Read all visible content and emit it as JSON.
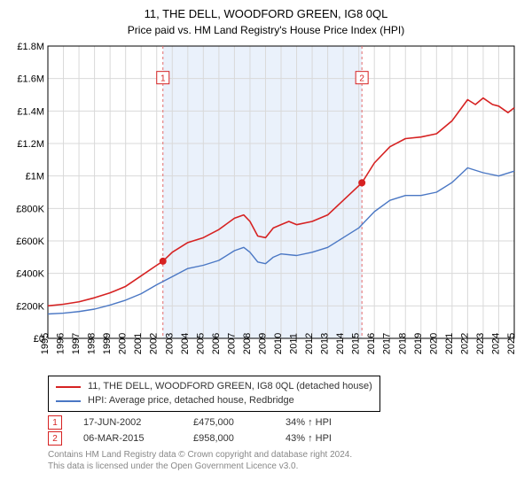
{
  "title": "11, THE DELL, WOODFORD GREEN, IG8 0QL",
  "subtitle": "Price paid vs. HM Land Registry's House Price Index (HPI)",
  "chart": {
    "type": "line",
    "background_color": "#ffffff",
    "shaded_band": {
      "x_start": 2002.4,
      "x_end": 2015.2,
      "fill": "#eaf1fb"
    },
    "grid_color": "#d9d9d9",
    "axis_color": "#000000",
    "x": {
      "min": 1995,
      "max": 2025,
      "ticks": [
        1995,
        1996,
        1997,
        1998,
        1999,
        2000,
        2001,
        2002,
        2003,
        2004,
        2005,
        2006,
        2007,
        2008,
        2009,
        2010,
        2011,
        2012,
        2013,
        2014,
        2015,
        2016,
        2017,
        2018,
        2019,
        2020,
        2021,
        2022,
        2023,
        2024,
        2025
      ]
    },
    "y": {
      "min": 0,
      "max": 1800000,
      "ticks": [
        0,
        200000,
        400000,
        600000,
        800000,
        1000000,
        1200000,
        1400000,
        1600000,
        1800000
      ],
      "tick_labels": [
        "£0",
        "£200K",
        "£400K",
        "£600K",
        "£800K",
        "£1M",
        "£1.2M",
        "£1.4M",
        "£1.6M",
        "£1.8M"
      ]
    },
    "series": [
      {
        "name": "price_paid",
        "label": "11, THE DELL, WOODFORD GREEN, IG8 0QL (detached house)",
        "color": "#d62222",
        "line_width": 1.6,
        "points": [
          [
            1995,
            200000
          ],
          [
            1996,
            210000
          ],
          [
            1997,
            225000
          ],
          [
            1998,
            250000
          ],
          [
            1999,
            280000
          ],
          [
            2000,
            320000
          ],
          [
            2001,
            385000
          ],
          [
            2002,
            450000
          ],
          [
            2002.4,
            475000
          ],
          [
            2003,
            530000
          ],
          [
            2004,
            590000
          ],
          [
            2005,
            620000
          ],
          [
            2006,
            670000
          ],
          [
            2007,
            740000
          ],
          [
            2007.6,
            760000
          ],
          [
            2008,
            720000
          ],
          [
            2008.5,
            630000
          ],
          [
            2009,
            620000
          ],
          [
            2009.5,
            680000
          ],
          [
            2010,
            700000
          ],
          [
            2010.5,
            720000
          ],
          [
            2011,
            700000
          ],
          [
            2012,
            720000
          ],
          [
            2013,
            760000
          ],
          [
            2014,
            850000
          ],
          [
            2015,
            940000
          ],
          [
            2015.2,
            958000
          ],
          [
            2016,
            1080000
          ],
          [
            2017,
            1180000
          ],
          [
            2018,
            1230000
          ],
          [
            2019,
            1240000
          ],
          [
            2020,
            1260000
          ],
          [
            2021,
            1340000
          ],
          [
            2022,
            1470000
          ],
          [
            2022.5,
            1440000
          ],
          [
            2023,
            1480000
          ],
          [
            2023.6,
            1440000
          ],
          [
            2024,
            1430000
          ],
          [
            2024.6,
            1390000
          ],
          [
            2025,
            1420000
          ]
        ]
      },
      {
        "name": "hpi",
        "label": "HPI: Average price, detached house, Redbridge",
        "color": "#4a77c4",
        "line_width": 1.4,
        "points": [
          [
            1995,
            150000
          ],
          [
            1996,
            155000
          ],
          [
            1997,
            165000
          ],
          [
            1998,
            180000
          ],
          [
            1999,
            205000
          ],
          [
            2000,
            235000
          ],
          [
            2001,
            275000
          ],
          [
            2002,
            330000
          ],
          [
            2003,
            380000
          ],
          [
            2004,
            430000
          ],
          [
            2005,
            450000
          ],
          [
            2006,
            480000
          ],
          [
            2007,
            540000
          ],
          [
            2007.6,
            560000
          ],
          [
            2008,
            530000
          ],
          [
            2008.5,
            470000
          ],
          [
            2009,
            460000
          ],
          [
            2009.5,
            500000
          ],
          [
            2010,
            520000
          ],
          [
            2011,
            510000
          ],
          [
            2012,
            530000
          ],
          [
            2013,
            560000
          ],
          [
            2014,
            620000
          ],
          [
            2015,
            680000
          ],
          [
            2016,
            780000
          ],
          [
            2017,
            850000
          ],
          [
            2018,
            880000
          ],
          [
            2019,
            880000
          ],
          [
            2020,
            900000
          ],
          [
            2021,
            960000
          ],
          [
            2022,
            1050000
          ],
          [
            2023,
            1020000
          ],
          [
            2024,
            1000000
          ],
          [
            2025,
            1030000
          ]
        ]
      }
    ],
    "markers": [
      {
        "n": "1",
        "x": 2002.4,
        "y": 475000,
        "color": "#d62222",
        "dash_color": "#e36b6b"
      },
      {
        "n": "2",
        "x": 2015.2,
        "y": 958000,
        "color": "#d62222",
        "dash_color": "#e36b6b"
      }
    ],
    "marker_label_top_y": 1600000
  },
  "legend": {
    "border_color": "#000000"
  },
  "transactions": [
    {
      "n": "1",
      "date": "17-JUN-2002",
      "price": "£475,000",
      "rel": "34% ↑ HPI",
      "border": "#d62222",
      "text": "#d62222"
    },
    {
      "n": "2",
      "date": "06-MAR-2015",
      "price": "£958,000",
      "rel": "43% ↑ HPI",
      "border": "#d62222",
      "text": "#d62222"
    }
  ],
  "footnote": {
    "line1": "Contains HM Land Registry data © Crown copyright and database right 2024.",
    "line2": "This data is licensed under the Open Government Licence v3.0."
  }
}
